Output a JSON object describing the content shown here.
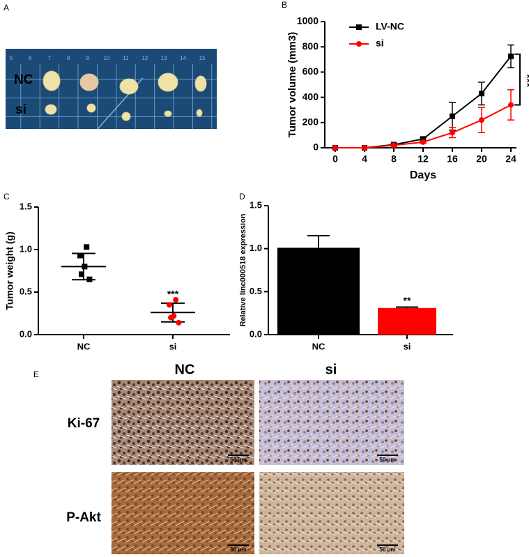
{
  "panel_labels": [
    "A",
    "B",
    "C",
    "D",
    "E"
  ],
  "photo_a": {
    "ruler": [
      "5",
      "6",
      "7",
      "8",
      "9",
      "10",
      "11",
      "12",
      "13",
      "14",
      "15"
    ],
    "rows": [
      "NC",
      "si"
    ]
  },
  "ihc": {
    "columns": [
      "NC",
      "si"
    ],
    "rows": [
      "Ki-67",
      "P-Akt"
    ],
    "scale_bar": "50 μm"
  },
  "chart_data": [
    {
      "type": "line",
      "xlabel": "Days",
      "ylabel": "Tumor volume (mm3)",
      "x": [
        0,
        4,
        8,
        12,
        16,
        20,
        24
      ],
      "xlim": [
        0,
        24
      ],
      "xticks": [
        0,
        4,
        8,
        12,
        16,
        20,
        24
      ],
      "ylim": [
        0,
        1000
      ],
      "yticks": [
        0,
        200,
        400,
        600,
        800,
        1000
      ],
      "legend": "upper left",
      "annotation": "***",
      "series": [
        {
          "name": "LV-NC",
          "color": "#000000",
          "marker": "square",
          "values": [
            0,
            0,
            25,
            70,
            250,
            430,
            725
          ],
          "errors": [
            0,
            0,
            5,
            10,
            110,
            90,
            90
          ]
        },
        {
          "name": "si",
          "color": "#ff0000",
          "marker": "circle",
          "values": [
            0,
            0,
            20,
            45,
            120,
            220,
            340
          ],
          "errors": [
            0,
            0,
            5,
            8,
            40,
            100,
            120
          ]
        }
      ]
    },
    {
      "type": "scatter",
      "ylabel": "Tumor weight (g)",
      "categories": [
        "NC",
        "si"
      ],
      "points": [
        [
          1.03,
          0.93,
          0.8,
          0.71,
          0.65
        ],
        [
          0.41,
          0.35,
          0.22,
          0.2,
          0.14
        ]
      ],
      "means": [
        0.8,
        0.26
      ],
      "sds": [
        0.155,
        0.11
      ],
      "colors": [
        "#000000",
        "#ff0000"
      ],
      "markers": [
        "square",
        "circle"
      ],
      "ylim": [
        0,
        1.5
      ],
      "yticks": [
        {
          "value": 0,
          "label": "0.0"
        },
        {
          "value": 0.5,
          "label": "0.5"
        },
        {
          "value": 1,
          "label": "1.0"
        },
        {
          "value": 1.5,
          "label": "1.5"
        }
      ],
      "annotation": "***"
    },
    {
      "type": "bar",
      "ylabel": "Relative linc000518 expression",
      "categories": [
        "NC",
        "si"
      ],
      "values": [
        1.01,
        0.31
      ],
      "errors": [
        0.14,
        0.01
      ],
      "colors": [
        "#000000",
        "#ff0000"
      ],
      "ylim": [
        0,
        1.5
      ],
      "yticks": [
        {
          "value": 0,
          "label": "0.0"
        },
        {
          "value": 0.5,
          "label": "0.5"
        },
        {
          "value": 1,
          "label": "1.0"
        },
        {
          "value": 1.5,
          "label": "1.5"
        }
      ],
      "annotation": "**"
    }
  ]
}
